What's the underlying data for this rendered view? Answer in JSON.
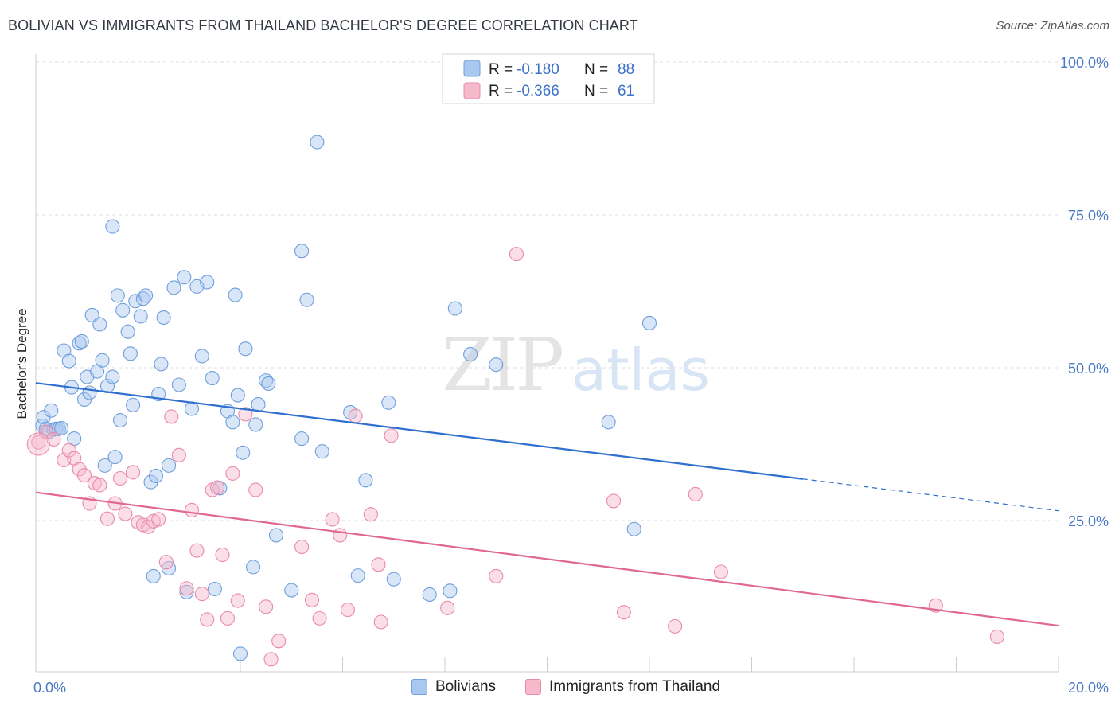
{
  "title": "BOLIVIAN VS IMMIGRANTS FROM THAILAND BACHELOR'S DEGREE CORRELATION CHART",
  "source": "Source: ZipAtlas.com",
  "watermark": {
    "zip": "ZIP",
    "atlas": "atlas"
  },
  "legend_top": {
    "rows": [
      {
        "r_label": "R =",
        "r_value": "-0.180",
        "n_label": "N =",
        "n_value": "88"
      },
      {
        "r_label": "R =",
        "r_value": "-0.366",
        "n_label": "N =",
        "n_value": "61"
      }
    ]
  },
  "legend_bottom": {
    "items": [
      "Bolivians",
      "Immigrants from Thailand"
    ]
  },
  "colors": {
    "blue_fill": "#a9c8f0",
    "blue_stroke": "#6f9fdc",
    "blue_line": "#2f6fd0",
    "pink_fill": "#f6b9cc",
    "pink_stroke": "#e98aa8",
    "pink_line": "#e0688f",
    "tick_label": "#4a78c4",
    "grid": "#dddddd"
  },
  "chart_data": {
    "type": "scatter",
    "title": "BOLIVIAN VS IMMIGRANTS FROM THAILAND BACHELOR'S DEGREE CORRELATION CHART",
    "xlabel": "",
    "ylabel": "Bachelor's Degree",
    "xlim": [
      0,
      20
    ],
    "ylim": [
      0,
      102
    ],
    "x_ticks": [
      "0.0%",
      "20.0%"
    ],
    "y_ticks": [
      {
        "value": 25,
        "label": "25.0%"
      },
      {
        "value": 50,
        "label": "50.0%"
      },
      {
        "value": 75,
        "label": "75.0%"
      },
      {
        "value": 100,
        "label": "100.0%"
      }
    ],
    "grid": true,
    "legend": "top-center",
    "series": [
      {
        "name": "Bolivians",
        "r": -0.18,
        "n": 88,
        "trend": {
          "x0": 0,
          "y0": 47.5,
          "x1": 15.0,
          "y1": 31.8,
          "x_dash_end": 20.0,
          "y_dash_end": 26.6
        },
        "points": [
          [
            0.13,
            40.5
          ],
          [
            0.15,
            41.9
          ],
          [
            0.2,
            40
          ],
          [
            0.25,
            39.5
          ],
          [
            0.3,
            43
          ],
          [
            0.35,
            39.9
          ],
          [
            0.4,
            40
          ],
          [
            0.45,
            40
          ],
          [
            0.5,
            40.1
          ],
          [
            0.55,
            52.8
          ],
          [
            0.65,
            51.1
          ],
          [
            0.7,
            46.8
          ],
          [
            0.75,
            38.4
          ],
          [
            0.85,
            54
          ],
          [
            0.9,
            54.3
          ],
          [
            0.95,
            44.8
          ],
          [
            1.0,
            48.5
          ],
          [
            1.05,
            45.9
          ],
          [
            1.1,
            58.6
          ],
          [
            1.2,
            49.4
          ],
          [
            1.25,
            57.1
          ],
          [
            1.3,
            51.2
          ],
          [
            1.35,
            34
          ],
          [
            1.4,
            47
          ],
          [
            1.5,
            48.5
          ],
          [
            1.55,
            35.4
          ],
          [
            1.6,
            61.8
          ],
          [
            1.65,
            41.4
          ],
          [
            1.7,
            59.4
          ],
          [
            1.8,
            55.9
          ],
          [
            1.85,
            52.3
          ],
          [
            1.9,
            43.9
          ],
          [
            1.95,
            60.9
          ],
          [
            2.05,
            58.4
          ],
          [
            2.1,
            61.3
          ],
          [
            2.15,
            61.8
          ],
          [
            2.25,
            31.3
          ],
          [
            2.35,
            32.3
          ],
          [
            2.4,
            45.7
          ],
          [
            2.45,
            50.6
          ],
          [
            2.5,
            58.2
          ],
          [
            2.6,
            34
          ],
          [
            2.7,
            63.1
          ],
          [
            2.8,
            47.2
          ],
          [
            2.9,
            64.8
          ],
          [
            3.05,
            43.3
          ],
          [
            3.15,
            63.3
          ],
          [
            3.25,
            51.9
          ],
          [
            3.35,
            64
          ],
          [
            3.45,
            48.3
          ],
          [
            3.5,
            13.8
          ],
          [
            3.6,
            30.3
          ],
          [
            3.75,
            42.9
          ],
          [
            3.85,
            41.1
          ],
          [
            3.9,
            61.9
          ],
          [
            3.95,
            45.5
          ],
          [
            4.05,
            36.1
          ],
          [
            4.1,
            53.1
          ],
          [
            4.25,
            17.4
          ],
          [
            4.3,
            40.7
          ],
          [
            4.35,
            44
          ],
          [
            4.5,
            47.9
          ],
          [
            4.55,
            47.4
          ],
          [
            4.7,
            22.6
          ],
          [
            5.0,
            13.6
          ],
          [
            5.2,
            38.4
          ],
          [
            5.3,
            61.1
          ],
          [
            5.5,
            86.9
          ],
          [
            5.6,
            36.3
          ],
          [
            6.15,
            42.7
          ],
          [
            6.3,
            16
          ],
          [
            6.45,
            31.6
          ],
          [
            6.9,
            44.3
          ],
          [
            7.0,
            15.4
          ],
          [
            7.7,
            12.9
          ],
          [
            8.1,
            13.5
          ],
          [
            8.2,
            59.7
          ],
          [
            8.5,
            52.2
          ],
          [
            9.0,
            50.5
          ],
          [
            11.2,
            41.1
          ],
          [
            11.7,
            23.6
          ],
          [
            12.0,
            57.3
          ],
          [
            1.5,
            73.1
          ],
          [
            5.2,
            69.1
          ],
          [
            2.3,
            15.9
          ],
          [
            2.6,
            17.2
          ],
          [
            2.95,
            13.3
          ],
          [
            4.0,
            3.2
          ]
        ]
      },
      {
        "name": "Immigrants from Thailand",
        "r": -0.366,
        "n": 61,
        "trend": {
          "x0": 0,
          "y0": 29.6,
          "x1": 20.0,
          "y1": 7.8
        },
        "points": [
          [
            0.05,
            37.8
          ],
          [
            0.2,
            39.5
          ],
          [
            0.35,
            38.3
          ],
          [
            0.55,
            34.9
          ],
          [
            0.65,
            36.5
          ],
          [
            0.75,
            35.2
          ],
          [
            0.85,
            33.4
          ],
          [
            0.95,
            32.4
          ],
          [
            1.05,
            27.8
          ],
          [
            1.15,
            31.1
          ],
          [
            1.25,
            30.8
          ],
          [
            1.4,
            25.3
          ],
          [
            1.55,
            27.8
          ],
          [
            1.65,
            31.9
          ],
          [
            1.75,
            26.1
          ],
          [
            1.9,
            32.9
          ],
          [
            2.0,
            24.7
          ],
          [
            2.1,
            24.3
          ],
          [
            2.2,
            24
          ],
          [
            2.3,
            24.9
          ],
          [
            2.4,
            25.2
          ],
          [
            2.55,
            18.2
          ],
          [
            2.65,
            42
          ],
          [
            2.8,
            35.7
          ],
          [
            2.95,
            13.9
          ],
          [
            3.05,
            26.7
          ],
          [
            3.15,
            20.1
          ],
          [
            3.25,
            13
          ],
          [
            3.35,
            8.8
          ],
          [
            3.45,
            30
          ],
          [
            3.55,
            30.4
          ],
          [
            3.65,
            19.4
          ],
          [
            3.75,
            9
          ],
          [
            3.85,
            32.7
          ],
          [
            3.95,
            11.9
          ],
          [
            4.1,
            42.4
          ],
          [
            4.3,
            30
          ],
          [
            4.5,
            10.9
          ],
          [
            4.6,
            2.3
          ],
          [
            4.75,
            5.3
          ],
          [
            5.2,
            20.7
          ],
          [
            5.4,
            12
          ],
          [
            5.55,
            9
          ],
          [
            5.8,
            25.2
          ],
          [
            5.95,
            22.6
          ],
          [
            6.1,
            10.4
          ],
          [
            6.25,
            42.1
          ],
          [
            6.55,
            26
          ],
          [
            6.7,
            17.8
          ],
          [
            6.75,
            8.4
          ],
          [
            6.95,
            38.9
          ],
          [
            8.05,
            10.7
          ],
          [
            9.0,
            15.9
          ],
          [
            9.4,
            68.6
          ],
          [
            11.3,
            28.2
          ],
          [
            11.5,
            10
          ],
          [
            12.5,
            7.7
          ],
          [
            12.9,
            29.3
          ],
          [
            13.4,
            16.6
          ],
          [
            17.6,
            11.1
          ],
          [
            18.8,
            6
          ]
        ]
      }
    ]
  }
}
